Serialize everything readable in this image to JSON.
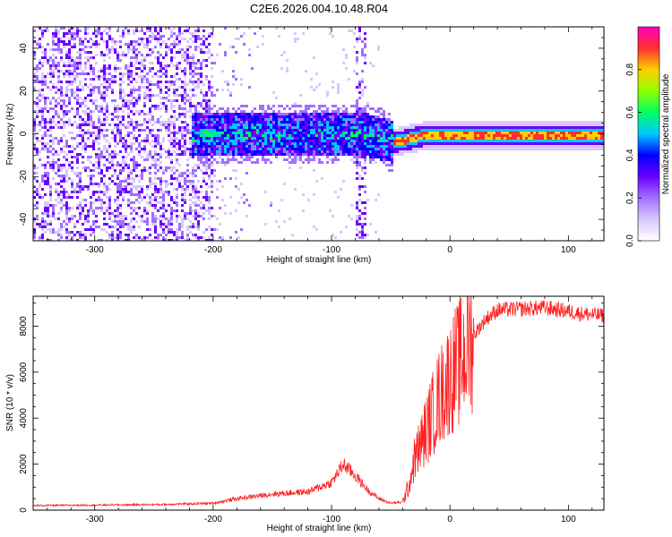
{
  "title": "C2E6.2026.004.10.48.R04",
  "chart_data": [
    {
      "type": "heatmap",
      "xlabel": "Height of straight line (km)",
      "ylabel": "Frequency (Hz)",
      "xlim": [
        -352,
        130
      ],
      "ylim": [
        -50,
        50
      ],
      "xticks": [
        -300,
        -200,
        -100,
        0,
        100
      ],
      "yticks": [
        -40,
        -20,
        0,
        20,
        40
      ],
      "colorbar": {
        "label": "Normalized spectral amplitude",
        "range": [
          0.0,
          1.0
        ],
        "ticks": [
          "0.0",
          "0.2",
          "0.4",
          "0.6",
          "0.8"
        ],
        "tick_values": [
          0.0,
          0.2,
          0.4,
          0.6,
          0.8
        ],
        "colors": [
          "#ffffff",
          "#d8c8ff",
          "#a070ff",
          "#6a00ff",
          "#0000ff",
          "#00c8ff",
          "#00ff60",
          "#90ff00",
          "#ffd000",
          "#ff3030",
          "#ff00c0"
        ]
      },
      "regions": [
        {
          "name": "noise",
          "x": [
            -352,
            -200
          ],
          "freq_spread_hz": 50,
          "amplitude": 0.2
        },
        {
          "name": "transition",
          "x": [
            -220,
            -50
          ],
          "freq_center_hz": 0,
          "freq_halfwidth_hz": 10,
          "amplitude": 0.35
        },
        {
          "name": "carrier",
          "x": [
            -50,
            130
          ],
          "freq_center_hz": 0,
          "freq_halfwidth_hz": 3,
          "amplitude": 0.9
        }
      ]
    },
    {
      "type": "line",
      "xlabel": "Height of straight line (km)",
      "ylabel": "SNR (10 * v/v)",
      "xlim": [
        -352,
        130
      ],
      "ylim": [
        0,
        9300
      ],
      "xticks": [
        -300,
        -200,
        -100,
        0,
        100
      ],
      "yticks": [
        0,
        2000,
        4000,
        6000,
        8000
      ],
      "color": "#ff2020",
      "series": [
        {
          "name": "SNR",
          "x": [
            -352,
            -300,
            -250,
            -200,
            -180,
            -150,
            -120,
            -100,
            -90,
            -80,
            -70,
            -60,
            -50,
            -40,
            -35,
            -30,
            -20,
            -10,
            0,
            10,
            20,
            30,
            40,
            60,
            80,
            100,
            110,
            130
          ],
          "y": [
            200,
            220,
            240,
            300,
            500,
            700,
            800,
            1200,
            2000,
            1500,
            900,
            500,
            300,
            350,
            1000,
            2200,
            3500,
            4800,
            5800,
            6600,
            7600,
            8300,
            8700,
            8750,
            8800,
            8650,
            8550,
            8450
          ]
        }
      ]
    }
  ]
}
